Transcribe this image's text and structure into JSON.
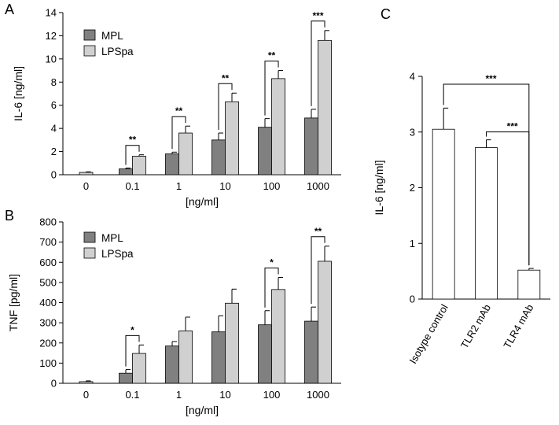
{
  "chart_data": [
    {
      "panel_label": "A",
      "type": "bar",
      "ylabel": "IL-6 [ng/ml]",
      "xlabel": "[ng/ml]",
      "ylim": [
        0,
        14
      ],
      "yticks": [
        0,
        2,
        4,
        6,
        8,
        10,
        12,
        14
      ],
      "categories": [
        "0",
        "0.1",
        "1",
        "10",
        "100",
        "1000"
      ],
      "legend_position": "top-left",
      "series": [
        {
          "name": "MPL",
          "color": "#808080",
          "values": [
            null,
            0.5,
            1.8,
            3.0,
            4.1,
            4.9
          ],
          "errors": [
            null,
            0.08,
            0.15,
            0.6,
            0.75,
            0.75
          ]
        },
        {
          "name": "LPSpa",
          "color": "#d0d0d0",
          "values": [
            null,
            1.6,
            3.6,
            6.3,
            8.3,
            11.6
          ],
          "errors": [
            null,
            0.12,
            0.6,
            0.75,
            0.7,
            0.85
          ]
        }
      ],
      "control": {
        "category": "0",
        "value": 0.2,
        "error": 0.05
      },
      "significance": [
        {
          "category": "0.1",
          "label": "**"
        },
        {
          "category": "1",
          "label": "**"
        },
        {
          "category": "10",
          "label": "**"
        },
        {
          "category": "100",
          "label": "**"
        },
        {
          "category": "1000",
          "label": "***"
        }
      ]
    },
    {
      "panel_label": "B",
      "type": "bar",
      "ylabel": "TNF [pg/ml]",
      "xlabel": "[ng/ml]",
      "ylim": [
        0,
        800
      ],
      "yticks": [
        0,
        100,
        200,
        300,
        400,
        500,
        600,
        700,
        800
      ],
      "categories": [
        "0",
        "0.1",
        "1",
        "10",
        "100",
        "1000"
      ],
      "legend_position": "top-left",
      "series": [
        {
          "name": "MPL",
          "color": "#808080",
          "values": [
            null,
            50,
            185,
            255,
            290,
            308
          ],
          "errors": [
            null,
            18,
            22,
            80,
            70,
            70
          ]
        },
        {
          "name": "LPSpa",
          "color": "#d0d0d0",
          "values": [
            null,
            148,
            260,
            397,
            465,
            605
          ],
          "errors": [
            null,
            42,
            68,
            70,
            60,
            75
          ]
        }
      ],
      "control": {
        "category": "0",
        "value": 8,
        "error": 4
      },
      "significance": [
        {
          "category": "0.1",
          "label": "*"
        },
        {
          "category": "100",
          "label": "*"
        },
        {
          "category": "1000",
          "label": "**"
        }
      ]
    },
    {
      "panel_label": "C",
      "type": "bar",
      "ylabel": "IL-6 [ng/ml]",
      "xlabel": "",
      "ylim": [
        0,
        4
      ],
      "yticks": [
        0,
        1,
        2,
        3,
        4
      ],
      "categories": [
        "Isotype control",
        "TLR2 mAb",
        "TLR4 mAb"
      ],
      "series": [
        {
          "color": "#ffffff",
          "values": [
            3.05,
            2.72,
            0.52
          ],
          "errors": [
            0.38,
            0.14,
            0.03
          ]
        }
      ],
      "significance": [
        {
          "from": "Isotype control",
          "to": "TLR4 mAb",
          "label": "***"
        },
        {
          "from": "TLR2 mAb",
          "to": "TLR4 mAb",
          "label": "***"
        }
      ]
    }
  ]
}
